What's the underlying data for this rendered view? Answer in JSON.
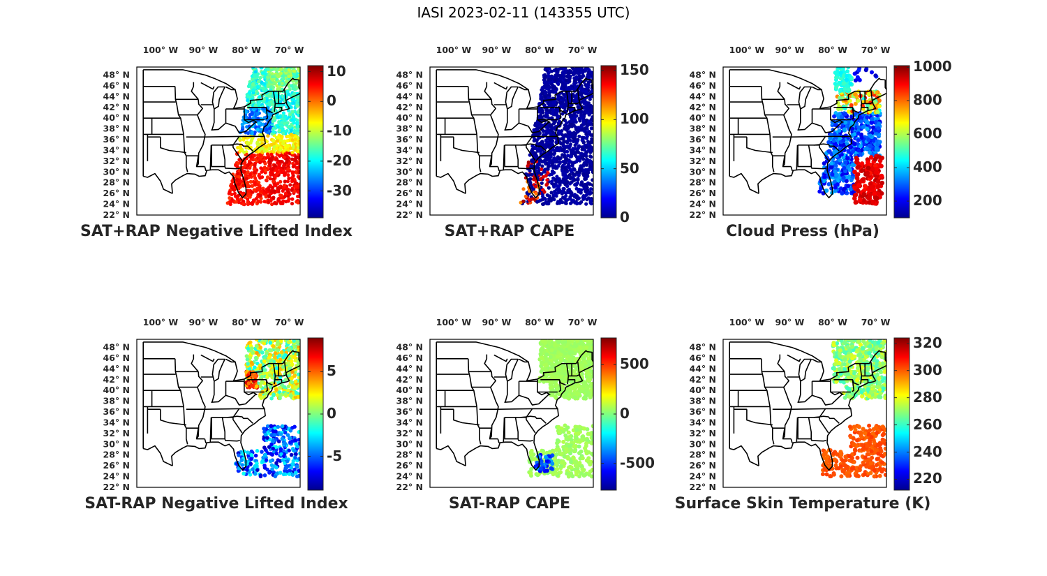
{
  "figure_title": "IASI 2023-02-11 (143355 UTC)",
  "lon_labels": [
    "100° W",
    "90° W",
    "80° W",
    "70° W"
  ],
  "lon_values": [
    -100,
    -90,
    -80,
    -70
  ],
  "lat_labels": [
    "48° N",
    "46° N",
    "44° N",
    "42° N",
    "40° N",
    "38° N",
    "36° N",
    "34° N",
    "32° N",
    "30° N",
    "28° N",
    "26° N",
    "24° N",
    "22° N"
  ],
  "lat_values": [
    48,
    46,
    44,
    42,
    40,
    38,
    36,
    34,
    32,
    30,
    28,
    26,
    24,
    22
  ],
  "map_extent": {
    "lon": [
      -105.5,
      -67.5
    ],
    "lat": [
      22,
      49.5
    ]
  },
  "colormap": "jet",
  "colormap_stops": [
    "#00008f",
    "#0000ff",
    "#0080ff",
    "#00ffff",
    "#80ff80",
    "#ffff00",
    "#ff8000",
    "#ff0000",
    "#800000"
  ],
  "panels": [
    {
      "id": "p1",
      "title": "SAT+RAP Negative Lifted Index",
      "colorbar": {
        "min": -39,
        "max": 12,
        "ticks": [
          10,
          0,
          -10,
          -20,
          -30
        ],
        "tick_labels": [
          "10",
          "0",
          "-10",
          "-20",
          "-30"
        ]
      },
      "scene": "li_full"
    },
    {
      "id": "p2",
      "title": "SAT+RAP CAPE",
      "colorbar": {
        "min": 0,
        "max": 155,
        "ticks": [
          150,
          100,
          50,
          0
        ],
        "tick_labels": [
          "150",
          "100",
          "50",
          "0"
        ]
      },
      "scene": "cape_full"
    },
    {
      "id": "p3",
      "title": "Cloud Press (hPa)",
      "colorbar": {
        "min": 100,
        "max": 1010,
        "ticks": [
          1000,
          800,
          600,
          400,
          200
        ],
        "tick_labels": [
          "1000",
          "800",
          "600",
          "400",
          "200"
        ]
      },
      "scene": "cloud_press"
    },
    {
      "id": "p4",
      "title": "SAT-RAP Negative Lifted Index",
      "colorbar": {
        "min": -9,
        "max": 9,
        "ticks": [
          5,
          0,
          -5
        ],
        "tick_labels": [
          "5",
          "0",
          "-5"
        ]
      },
      "scene": "li_diff"
    },
    {
      "id": "p5",
      "title": "SAT-RAP CAPE",
      "colorbar": {
        "min": -770,
        "max": 770,
        "ticks": [
          500,
          0,
          -500
        ],
        "tick_labels": [
          "500",
          "0",
          "-500"
        ]
      },
      "scene": "cape_diff"
    },
    {
      "id": "p6",
      "title": "Surface Skin Temperature (K)",
      "colorbar": {
        "min": 212,
        "max": 324,
        "ticks": [
          320,
          300,
          280,
          260,
          240,
          220
        ],
        "tick_labels": [
          "320",
          "300",
          "280",
          "260",
          "240",
          "220"
        ]
      },
      "scene": "skin_temp"
    }
  ]
}
